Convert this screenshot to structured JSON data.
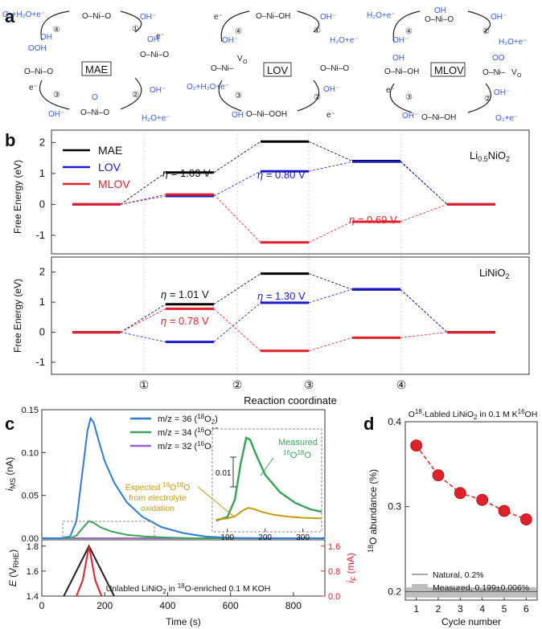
{
  "panel_labels": {
    "a": "a",
    "b": "b",
    "c": "c",
    "d": "d"
  },
  "panel_a": {
    "MAE": {
      "label": "MAE",
      "species": {
        "top": "O–Ni–O",
        "right": "O–Ni–O",
        "bottom": "O–Ni–O",
        "left": "O–Ni–O",
        "right_ligand": "OH",
        "bottom_ligand": "O",
        "left_ligand": "OOH"
      },
      "arrows": {
        "a1_in": "OH⁻",
        "a1_out": "e⁻",
        "a2_in": "OH⁻",
        "a2_out": "H₂O+e⁻",
        "a3_in": "OH⁻",
        "a3_out": "e⁻",
        "a4_in": "OH",
        "a4_out": "O₂+H₂O+e⁻"
      },
      "steps": [
        "①",
        "②",
        "③",
        "④"
      ]
    },
    "LOV": {
      "label": "LOV",
      "species": {
        "top": "O–Ni–OH",
        "right": "O–Ni–O",
        "bottom": "O–Ni–OOH",
        "left": "O–Ni–",
        "vacancy": "V",
        "vacancy_sub": "O"
      },
      "arrows": {
        "a1_in": "OH⁻",
        "a1_out": "H₂O+e⁻",
        "a2_in": "OH⁻",
        "a2_out": "e⁻",
        "a3_in": "OH⁻",
        "a3_out": "O₂+H₂O+e⁻",
        "a4_in": "OH⁻",
        "a4_out": "e⁻"
      },
      "steps": [
        "①",
        "②",
        "③",
        "④"
      ]
    },
    "MLOV": {
      "label": "MLOV",
      "species": {
        "top": "O–Ni–O",
        "top_ligand": "OH",
        "right": "O–Ni–",
        "right_ligand": "OO",
        "vacancy": "V",
        "vacancy_sub": "O",
        "bottom": "O–Ni–OH",
        "left": "O–Ni–OH",
        "left_ligand": "OH"
      },
      "arrows": {
        "a1_in": "OH⁻",
        "a1_out": "H₂O+e⁻",
        "a2_in": "OH⁻",
        "a2_out": "O₂+e⁻",
        "a3_in": "OH⁻",
        "a3_out": "e⁻",
        "a4_in": "OH⁻",
        "a4_out": "H₂O+e⁻"
      },
      "steps": [
        "①",
        "②",
        "③",
        "④"
      ]
    }
  },
  "panel_b": {
    "xlabel": "Reaction coordinate",
    "ylabel": "Free Energy (eV)",
    "xticks": [
      "①",
      "②",
      "③",
      "④"
    ],
    "legend": [
      "MAE",
      "LOV",
      "MLOV"
    ],
    "colors": {
      "MAE": "#000000",
      "LOV": "#1a1ac8",
      "MLOV": "#e0202a"
    },
    "top": {
      "material": "Li",
      "material_sub": "0.5",
      "material_rest": "NiO",
      "material_sub2": "2",
      "ylim": [
        -1.6,
        2.4
      ],
      "yticks": [
        "-1",
        "0",
        "1",
        "2"
      ],
      "series": {
        "MAE": [
          0,
          1.03,
          2.03,
          1.4,
          0
        ],
        "LOV": [
          0,
          0.27,
          1.07,
          1.38,
          0
        ],
        "MLOV": [
          0,
          0.32,
          -1.23,
          -0.56,
          0
        ]
      },
      "annotations": [
        {
          "sym": "η",
          "text": " = 1.03 V",
          "series": "MAE"
        },
        {
          "sym": "η",
          "text": " = 0.80 V",
          "series": "LOV"
        },
        {
          "sym": "η",
          "text": " = 0.69 V",
          "series": "MLOV"
        }
      ]
    },
    "bottom": {
      "material": "LiNiO",
      "material_sub": "2",
      "ylim": [
        -1.4,
        2.5
      ],
      "yticks": [
        "-1",
        "0",
        "1",
        "2"
      ],
      "series": {
        "MAE": [
          0,
          0.93,
          1.95,
          1.42,
          0
        ],
        "LOV": [
          0,
          -0.32,
          0.98,
          1.43,
          0
        ],
        "MLOV": [
          0,
          0.78,
          -0.62,
          -0.18,
          0
        ]
      },
      "annotations": [
        {
          "sym": "η",
          "text": " = 1.01 V",
          "series": "MAE"
        },
        {
          "sym": "η",
          "text": " = 1.30 V",
          "series": "LOV"
        },
        {
          "sym": "η",
          "text": " = 0.78 V",
          "series": "MLOV"
        }
      ]
    }
  },
  "chart_data": [
    {
      "type": "line",
      "title": "",
      "xlabel": "Time  (s)",
      "ylabel": "i_MS (nA)",
      "xlim": [
        0,
        900
      ],
      "ylim": [
        0,
        0.15
      ],
      "yticks": [
        "0.00",
        "0.05",
        "0.10",
        "0.15"
      ],
      "xticks": [
        "0",
        "200",
        "400",
        "600",
        "800"
      ],
      "series": [
        {
          "name": "m/z = 36 (18O2)",
          "label_pre": "m/z = 36 (",
          "label_sup": "18",
          "label_mid": "O",
          "label_sub": "2",
          "label_post": ")",
          "color": "#2e7bd6",
          "x": [
            0,
            60,
            90,
            110,
            130,
            145,
            155,
            165,
            180,
            200,
            230,
            270,
            320,
            380,
            450,
            520,
            600,
            700,
            800,
            900
          ],
          "y": [
            0,
            0,
            0.002,
            0.02,
            0.08,
            0.125,
            0.14,
            0.135,
            0.115,
            0.09,
            0.065,
            0.042,
            0.025,
            0.013,
            0.006,
            0.002,
            0.0005,
            0,
            0,
            0
          ]
        },
        {
          "name": "m/z = 34 (16O18O)",
          "label_pre": "m/z = 34 (",
          "label_sup": "16",
          "label_mid": "O",
          "label_sup2": "18",
          "label_mid2": "O)",
          "color": "#3aa55a",
          "x": [
            0,
            90,
            110,
            130,
            150,
            165,
            185,
            220,
            270,
            330,
            400,
            480,
            900
          ],
          "y": [
            0,
            0,
            0.003,
            0.012,
            0.02,
            0.018,
            0.013,
            0.008,
            0.004,
            0.002,
            0.0008,
            0,
            0
          ]
        },
        {
          "name": "m/z = 32 (16O2)",
          "label_pre": "m/z = 32 (",
          "label_sup": "16",
          "label_mid": "O",
          "label_sub": "2",
          "label_post": ")",
          "color": "#9b5fd6",
          "x": [
            0,
            900
          ],
          "y": [
            0,
            0
          ]
        }
      ],
      "inset": {
        "xlim": [
          60,
          350
        ],
        "xticks": [
          "100",
          "200",
          "300"
        ],
        "scale_label": "0.01",
        "measured_label": "Measured",
        "measured_sup": "16",
        "measured_o": "O",
        "measured_sup2": "18",
        "measured_o2": "O",
        "expected_label_pre": "Expected ",
        "expected_sup": "16",
        "expected_o": "O",
        "expected_sup2": "18",
        "expected_o2": "O",
        "expected_line2": "from electrolyte",
        "expected_line3": "oxidation",
        "measured": {
          "x": [
            70,
            100,
            120,
            135,
            150,
            160,
            175,
            200,
            240,
            280,
            320,
            350
          ],
          "y": [
            0,
            0.001,
            0.006,
            0.016,
            0.0235,
            0.023,
            0.019,
            0.013,
            0.008,
            0.005,
            0.0032,
            0.0025
          ]
        },
        "expected": {
          "x": [
            70,
            100,
            120,
            140,
            155,
            170,
            190,
            220,
            260,
            300,
            350
          ],
          "y": [
            0.0003,
            0.0006,
            0.0012,
            0.0028,
            0.0036,
            0.0033,
            0.0025,
            0.0017,
            0.0011,
            0.0008,
            0.0006
          ]
        }
      },
      "lower": {
        "ylabel_left": "E (V_RHE)",
        "ylabel_right": "i_F (mA)",
        "ylim_left": [
          1.4,
          1.85
        ],
        "yticks_left": [
          "1.4",
          "1.6",
          "1.8"
        ],
        "ylim_right": [
          0,
          1.8
        ],
        "yticks_right": [
          "0.0",
          "0.8",
          "1.6"
        ],
        "annotation_pre": "Unlabled LiNiO",
        "annotation_sub": "2",
        "annotation_mid": " in ",
        "annotation_sup": "18",
        "annotation_post": "O-enriched 0.1 M KOH",
        "potential": {
          "x": [
            70,
            150,
            230
          ],
          "y": [
            1.4,
            1.8,
            1.4
          ]
        },
        "current": {
          "x": [
            110,
            130,
            150,
            170,
            190
          ],
          "y": [
            0,
            0.5,
            1.6,
            0.5,
            0
          ]
        }
      }
    },
    {
      "type": "line",
      "title_pre": "O",
      "title_sup": "18",
      "title_post": "-Labled LiNiO",
      "title_sub": "2",
      "title_mid": " in 0.1 M K",
      "title_sup2": "16",
      "title_end": "OH",
      "xlabel": "Cycle number",
      "ylabel": "18O abundance  (%)",
      "ylabel_sup": "18",
      "ylabel_rest": "O abundance  (%)",
      "xlim": [
        0.5,
        6.5
      ],
      "ylim": [
        0.19,
        0.4
      ],
      "xticks": [
        "1",
        "2",
        "3",
        "4",
        "5",
        "6"
      ],
      "yticks": [
        "0.2",
        "0.3",
        "0.4"
      ],
      "series": [
        {
          "name": "measured",
          "x": [
            1,
            2,
            3,
            4,
            5,
            6
          ],
          "y": [
            0.372,
            0.337,
            0.316,
            0.308,
            0.295,
            0.285
          ],
          "color": "#e0202a"
        }
      ],
      "natural_line": 0.2,
      "measured_band": [
        0.193,
        0.205
      ],
      "legend": [
        "Natural, 0.2%",
        "Measured, 0.199±0.006%"
      ]
    }
  ]
}
